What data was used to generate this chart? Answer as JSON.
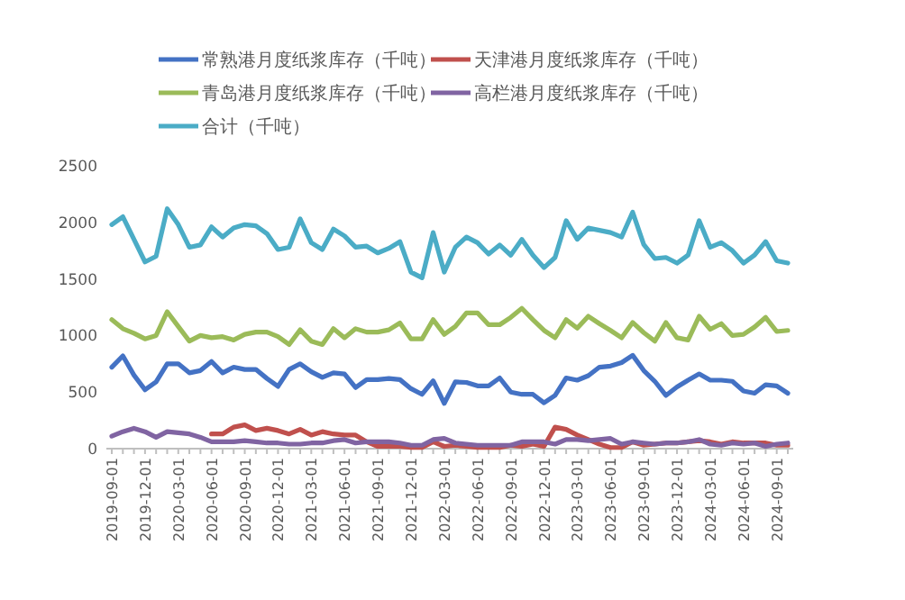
{
  "chart_data": {
    "type": "line",
    "legend": "top",
    "ylim": [
      0,
      2500
    ],
    "yticks": [
      0,
      500,
      1000,
      1500,
      2000,
      2500
    ],
    "categories": [
      "2019-09-01",
      null,
      null,
      "2019-12-01",
      null,
      null,
      "2020-03-01",
      null,
      null,
      "2020-06-01",
      null,
      null,
      "2020-09-01",
      null,
      null,
      "2020-12-01",
      null,
      null,
      "2021-03-01",
      null,
      null,
      "2021-06-01",
      null,
      null,
      "2021-09-01",
      null,
      null,
      "2021-12-01",
      null,
      null,
      "2022-03-01",
      null,
      null,
      "2022-06-01",
      null,
      null,
      "2022-09-01",
      null,
      null,
      "2022-12-01",
      null,
      null,
      "2023-03-01",
      null,
      null,
      "2023-06-01",
      null,
      null,
      "2023-09-01",
      null,
      null,
      "2023-12-01",
      null,
      null,
      "2024-03-01",
      null,
      null,
      "2024-06-01",
      null,
      null,
      "2024-09-01",
      null
    ],
    "series": [
      {
        "name": "常熟港月度纸浆库存（千吨）",
        "color": "#4472c4",
        "values": [
          720,
          820,
          650,
          520,
          590,
          750,
          750,
          670,
          690,
          770,
          670,
          720,
          700,
          700,
          620,
          550,
          700,
          750,
          680,
          630,
          670,
          660,
          540,
          610,
          610,
          620,
          610,
          530,
          480,
          600,
          400,
          590,
          585,
          555,
          555,
          625,
          500,
          480,
          480,
          405,
          470,
          625,
          605,
          645,
          720,
          730,
          760,
          825,
          690,
          595,
          470,
          545,
          605,
          660,
          605,
          605,
          595,
          510,
          490,
          565,
          555,
          490
        ]
      },
      {
        "name": "天津港月度纸浆库存（千吨）",
        "color": "#c0504d",
        "values": [
          null,
          null,
          null,
          null,
          null,
          null,
          null,
          null,
          null,
          130,
          130,
          190,
          210,
          160,
          180,
          160,
          130,
          170,
          120,
          150,
          130,
          120,
          120,
          60,
          20,
          20,
          20,
          10,
          10,
          60,
          20,
          30,
          20,
          10,
          10,
          10,
          30,
          20,
          40,
          20,
          190,
          170,
          120,
          80,
          40,
          10,
          10,
          60,
          30,
          40,
          50,
          50,
          60,
          70,
          60,
          40,
          60,
          50,
          50,
          50,
          30,
          30
        ]
      },
      {
        "name": "青岛港月度纸浆库存（千吨）",
        "color": "#9bbb59",
        "values": [
          1140,
          1060,
          1020,
          970,
          1000,
          1210,
          1080,
          950,
          1000,
          980,
          990,
          960,
          1010,
          1030,
          1030,
          990,
          920,
          1050,
          950,
          920,
          1060,
          980,
          1060,
          1030,
          1030,
          1050,
          1110,
          970,
          970,
          1140,
          1010,
          1080,
          1200,
          1200,
          1095,
          1095,
          1160,
          1240,
          1140,
          1045,
          980,
          1140,
          1065,
          1170,
          1105,
          1045,
          980,
          1115,
          1025,
          950,
          1115,
          980,
          960,
          1170,
          1055,
          1105,
          1000,
          1010,
          1075,
          1160,
          1035,
          1045
        ]
      },
      {
        "name": "高栏港月度纸浆库存（千吨）",
        "color": "#8064a2",
        "values": [
          110,
          150,
          180,
          150,
          100,
          150,
          140,
          130,
          100,
          60,
          60,
          60,
          70,
          60,
          50,
          50,
          40,
          40,
          50,
          50,
          70,
          80,
          50,
          60,
          60,
          60,
          50,
          30,
          30,
          80,
          90,
          50,
          40,
          30,
          30,
          30,
          30,
          60,
          60,
          60,
          40,
          80,
          80,
          70,
          80,
          90,
          40,
          60,
          50,
          40,
          50,
          50,
          60,
          80,
          40,
          30,
          50,
          40,
          50,
          20,
          40,
          50
        ]
      },
      {
        "name": "合计（千吨）",
        "color": "#4bacc6",
        "values": [
          1980,
          2050,
          1850,
          1650,
          1700,
          2120,
          1980,
          1780,
          1800,
          1960,
          1870,
          1950,
          1980,
          1970,
          1900,
          1760,
          1780,
          2030,
          1820,
          1760,
          1940,
          1880,
          1780,
          1790,
          1730,
          1770,
          1830,
          1560,
          1510,
          1910,
          1560,
          1780,
          1870,
          1820,
          1720,
          1800,
          1710,
          1850,
          1710,
          1600,
          1690,
          2015,
          1850,
          1950,
          1930,
          1910,
          1870,
          2090,
          1805,
          1680,
          1690,
          1640,
          1710,
          2015,
          1780,
          1820,
          1750,
          1640,
          1710,
          1830,
          1660,
          1640
        ]
      }
    ]
  }
}
